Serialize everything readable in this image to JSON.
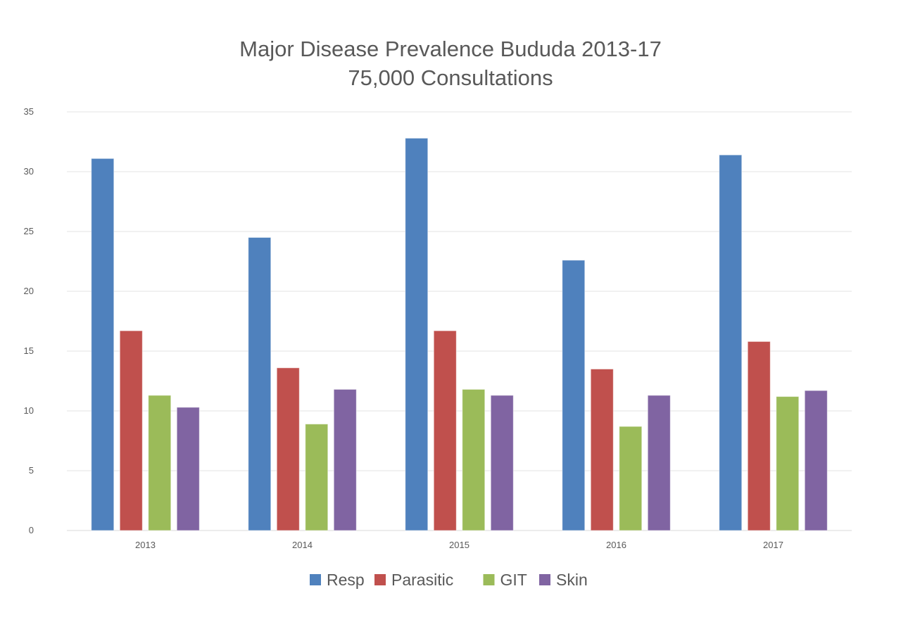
{
  "chart_data": {
    "type": "bar",
    "title": "Major Disease Prevalence Bududa 2013-17",
    "subtitle": "75,000 Consultations",
    "xlabel": "",
    "ylabel": "",
    "ylim": [
      0,
      35
    ],
    "yticks": [
      0,
      5,
      10,
      15,
      20,
      25,
      30,
      35
    ],
    "grid": true,
    "legend_position": "bottom",
    "categories": [
      "2013",
      "2014",
      "2015",
      "2016",
      "2017"
    ],
    "series": [
      {
        "name": "Resp",
        "color": "#4F81BD",
        "values": [
          31.1,
          24.5,
          32.8,
          22.6,
          31.4
        ]
      },
      {
        "name": "Parasitic",
        "color": "#C0504D",
        "values": [
          16.7,
          13.6,
          16.7,
          13.5,
          15.8
        ]
      },
      {
        "name": "GIT",
        "color": "#9BBB59",
        "values": [
          11.3,
          8.9,
          11.8,
          8.7,
          11.2
        ]
      },
      {
        "name": "Skin",
        "color": "#8064A2",
        "values": [
          10.3,
          11.8,
          11.3,
          11.3,
          11.7
        ]
      }
    ]
  }
}
